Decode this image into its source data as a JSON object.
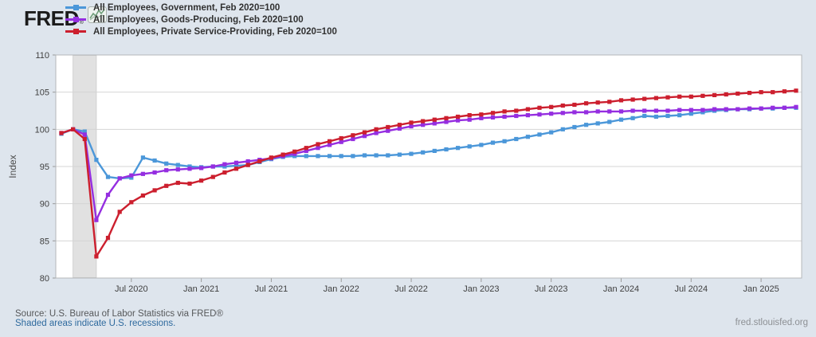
{
  "header": {
    "logo_text": "FRED",
    "registered": "®",
    "logo_icon": "sparkline-chart-icon"
  },
  "legend": [
    {
      "label": "All Employees, Government, Feb 2020=100",
      "color": "#4b97d9"
    },
    {
      "label": "All Employees, Goods-Producing, Feb 2020=100",
      "color": "#952ee0"
    },
    {
      "label": "All Employees, Private Service-Providing, Feb 2020=100",
      "color": "#cc1f2e"
    }
  ],
  "footer": {
    "source": "Source: U.S. Bureau of Labor Statistics via FRED®",
    "recession_note": "Shaded areas indicate U.S. recessions.",
    "site": "fred.stlouisfed.org"
  },
  "colors": {
    "background": "#dee5ed",
    "plot_background": "#ffffff",
    "gridline": "#d4d4d4",
    "plot_border": "#b4b7ba",
    "tick": "#9a9a9a",
    "recession_band": "#e1e1e1",
    "axis_text": "#3f3f3f",
    "link_blue": "#2e6a9e"
  },
  "chart_data": {
    "type": "line",
    "title": "",
    "xlabel": "",
    "ylabel": "Index",
    "ylim": [
      80,
      110
    ],
    "y_tick_step": 5,
    "y_ticks": [
      80,
      85,
      90,
      95,
      100,
      105,
      110
    ],
    "grid": "horizontal",
    "legend_position": "top-left",
    "frequency": "monthly",
    "months": [
      "2020-01",
      "2020-02",
      "2020-03",
      "2020-04",
      "2020-05",
      "2020-06",
      "2020-07",
      "2020-08",
      "2020-09",
      "2020-10",
      "2020-11",
      "2020-12",
      "2021-01",
      "2021-02",
      "2021-03",
      "2021-04",
      "2021-05",
      "2021-06",
      "2021-07",
      "2021-08",
      "2021-09",
      "2021-10",
      "2021-11",
      "2021-12",
      "2022-01",
      "2022-02",
      "2022-03",
      "2022-04",
      "2022-05",
      "2022-06",
      "2022-07",
      "2022-08",
      "2022-09",
      "2022-10",
      "2022-11",
      "2022-12",
      "2023-01",
      "2023-02",
      "2023-03",
      "2023-04",
      "2023-05",
      "2023-06",
      "2023-07",
      "2023-08",
      "2023-09",
      "2023-10",
      "2023-11",
      "2023-12",
      "2024-01",
      "2024-02",
      "2024-03",
      "2024-04",
      "2024-05",
      "2024-06",
      "2024-07",
      "2024-08",
      "2024-09",
      "2024-10",
      "2024-11",
      "2024-12",
      "2025-01",
      "2025-02",
      "2025-03",
      "2025-04"
    ],
    "x_ticks": [
      {
        "label": "Jul 2020",
        "month": "2020-07"
      },
      {
        "label": "Jan 2021",
        "month": "2021-01"
      },
      {
        "label": "Jul 2021",
        "month": "2021-07"
      },
      {
        "label": "Jan 2022",
        "month": "2022-01"
      },
      {
        "label": "Jul 2022",
        "month": "2022-07"
      },
      {
        "label": "Jan 2023",
        "month": "2023-01"
      },
      {
        "label": "Jul 2023",
        "month": "2023-07"
      },
      {
        "label": "Jan 2024",
        "month": "2024-01"
      },
      {
        "label": "Jul 2024",
        "month": "2024-07"
      },
      {
        "label": "Jan 2025",
        "month": "2025-01"
      }
    ],
    "recessions": [
      {
        "start": "2020-02",
        "end": "2020-04"
      }
    ],
    "series": [
      {
        "id": "government",
        "name": "All Employees, Government, Feb 2020=100",
        "color": "#4b97d9",
        "values": [
          99.4,
          100.0,
          99.7,
          95.9,
          93.6,
          93.4,
          93.5,
          96.2,
          95.8,
          95.4,
          95.2,
          95.0,
          94.9,
          95.0,
          95.0,
          95.1,
          95.2,
          95.6,
          96.0,
          96.3,
          96.4,
          96.4,
          96.4,
          96.4,
          96.4,
          96.4,
          96.5,
          96.5,
          96.5,
          96.6,
          96.7,
          96.9,
          97.1,
          97.3,
          97.5,
          97.7,
          97.9,
          98.2,
          98.4,
          98.7,
          99.0,
          99.3,
          99.6,
          100.0,
          100.3,
          100.6,
          100.8,
          101.0,
          101.3,
          101.5,
          101.8,
          101.7,
          101.8,
          101.9,
          102.1,
          102.3,
          102.5,
          102.6,
          102.7,
          102.7,
          102.8,
          102.8,
          102.9,
          102.9
        ]
      },
      {
        "id": "goods-producing",
        "name": "All Employees, Goods-Producing, Feb 2020=100",
        "color": "#952ee0",
        "values": [
          99.5,
          100.0,
          99.3,
          87.8,
          91.2,
          93.4,
          93.8,
          94.0,
          94.2,
          94.5,
          94.6,
          94.7,
          94.8,
          95.0,
          95.3,
          95.5,
          95.7,
          95.9,
          96.1,
          96.4,
          96.7,
          97.1,
          97.5,
          97.9,
          98.3,
          98.7,
          99.1,
          99.5,
          99.8,
          100.1,
          100.4,
          100.6,
          100.8,
          101.0,
          101.2,
          101.3,
          101.5,
          101.6,
          101.7,
          101.8,
          101.9,
          102.0,
          102.1,
          102.2,
          102.3,
          102.3,
          102.4,
          102.4,
          102.4,
          102.5,
          102.5,
          102.5,
          102.5,
          102.6,
          102.6,
          102.6,
          102.7,
          102.7,
          102.7,
          102.8,
          102.8,
          102.9,
          102.9,
          103.0
        ]
      },
      {
        "id": "private-service-providing",
        "name": "All Employees, Private Service-Providing, Feb 2020=100",
        "color": "#cc1f2e",
        "values": [
          99.5,
          100.0,
          98.7,
          82.9,
          85.4,
          88.9,
          90.2,
          91.1,
          91.8,
          92.4,
          92.8,
          92.7,
          93.1,
          93.6,
          94.2,
          94.7,
          95.2,
          95.7,
          96.2,
          96.6,
          97.0,
          97.5,
          98.0,
          98.4,
          98.8,
          99.2,
          99.6,
          100.0,
          100.3,
          100.6,
          100.9,
          101.1,
          101.3,
          101.5,
          101.7,
          101.9,
          102.0,
          102.2,
          102.4,
          102.5,
          102.7,
          102.9,
          103.0,
          103.2,
          103.3,
          103.5,
          103.6,
          103.7,
          103.9,
          104.0,
          104.1,
          104.2,
          104.3,
          104.4,
          104.4,
          104.5,
          104.6,
          104.7,
          104.8,
          104.9,
          105.0,
          105.0,
          105.1,
          105.2
        ]
      }
    ]
  }
}
